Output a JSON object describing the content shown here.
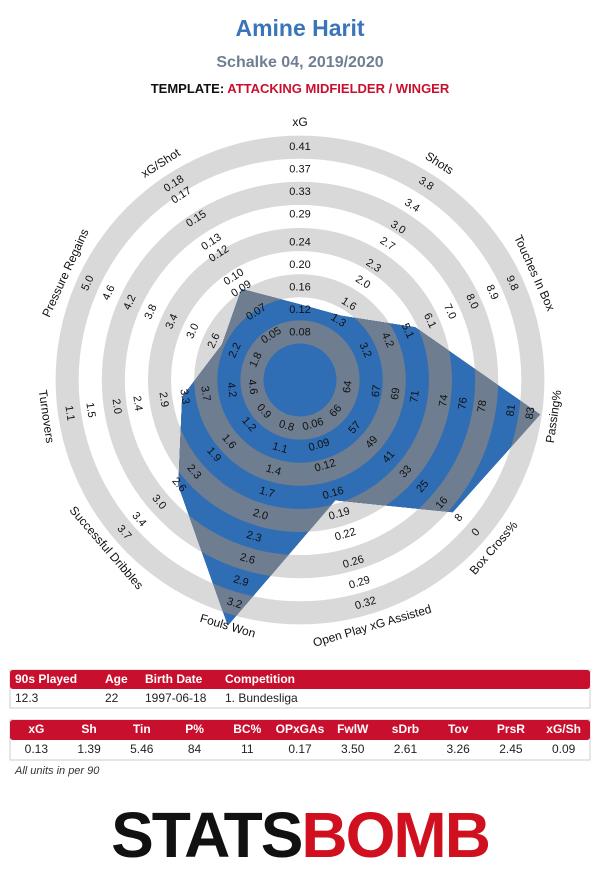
{
  "header": {
    "title": "Amine Harit",
    "subtitle": "Schalke 04, 2019/2020",
    "template_label": "TEMPLATE:",
    "template": "ATTACKING MIDFIELDER / WINGER"
  },
  "chart_data": {
    "type": "radar",
    "categories": [
      "xG",
      "Shots",
      "Touches In Box",
      "Passing%",
      "Box Cross%",
      "Open Play xG Assisted",
      "Fouls Won",
      "Successful Dribbles",
      "Turnovers",
      "Pressure Regains",
      "xG/Shot"
    ],
    "values": [
      0.13,
      1.39,
      5.46,
      84,
      11,
      0.17,
      3.5,
      2.61,
      3.26,
      2.45,
      0.09
    ],
    "color": "#2f6db5",
    "axis_lims": [
      [
        0.04,
        0.41
      ],
      [
        0.6,
        3.8
      ],
      [
        1.3,
        9.8
      ],
      [
        61.6,
        83
      ],
      [
        74,
        0
      ],
      [
        0.03,
        0.32
      ],
      [
        0.5,
        3.2
      ],
      [
        0.55,
        3.7
      ],
      [
        5.04,
        1.1
      ],
      [
        1.4,
        5.0
      ],
      [
        0.03,
        0.18
      ]
    ],
    "axis_ticks": [
      [
        0.08,
        0.12,
        0.16,
        {
          "value": 0.2,
          "label": "0.20"
        },
        0.24,
        0.29,
        0.33,
        0.37,
        0.41
      ],
      [
        1.3,
        1.6,
        {
          "value": 2,
          "label": "2.0"
        },
        2.3,
        2.7,
        {
          "value": 3,
          "label": "3.0"
        },
        3.4,
        3.8
      ],
      [
        3.2,
        4.2,
        5.1,
        6.1,
        {
          "value": 7,
          "label": "7.0"
        },
        {
          "value": 8,
          "label": "8.0"
        },
        8.9,
        9.8
      ],
      [
        64,
        67,
        69,
        71,
        74,
        76,
        78,
        81,
        83
      ],
      [
        66,
        57,
        49,
        41,
        33,
        25,
        16,
        8,
        0
      ],
      [
        0.06,
        0.09,
        0.12,
        0.16,
        0.19,
        0.22,
        0.26,
        0.29,
        0.32
      ],
      [
        0.8,
        1.1,
        1.4,
        1.7,
        {
          "value": 2,
          "label": "2.0"
        },
        2.3,
        2.6,
        2.9,
        3.2
      ],
      [
        0.9,
        1.2,
        1.6,
        1.9,
        2.3,
        2.6,
        {
          "value": 3,
          "label": "3.0"
        },
        3.4,
        3.7
      ],
      [
        4.6,
        4.2,
        3.7,
        3.3,
        2.9,
        2.4,
        {
          "value": 2,
          "label": "2.0"
        },
        1.5,
        1.1
      ],
      [
        1.8,
        2.2,
        2.6,
        {
          "value": 3,
          "label": "3.0"
        },
        3.4,
        3.8,
        4.2,
        4.6,
        {
          "value": 5,
          "label": "5.0"
        }
      ],
      [
        0.05,
        0.07,
        0.09,
        {
          "value": 0.1,
          "label": "0.10"
        },
        0.12,
        0.13,
        0.15,
        0.17,
        0.18
      ]
    ]
  },
  "info_table": {
    "headers": [
      "90s Played",
      "Age",
      "Birth Date",
      "Competition"
    ],
    "row": [
      "12.3",
      "22",
      "1997-06-18",
      "1. Bundesliga"
    ]
  },
  "stats_table": {
    "headers": [
      "xG",
      "Sh",
      "Tin",
      "P%",
      "BC%",
      "OPxGAs",
      "FwlW",
      "sDrb",
      "Tov",
      "PrsR",
      "xG/Sh"
    ],
    "row": [
      "0.13",
      "1.39",
      "5.46",
      "84",
      "11",
      "0.17",
      "3.50",
      "2.61",
      "3.26",
      "2.45",
      "0.09"
    ]
  },
  "footnote": "All units in per 90",
  "logo": {
    "left": "STATS",
    "right": "BOMB"
  }
}
